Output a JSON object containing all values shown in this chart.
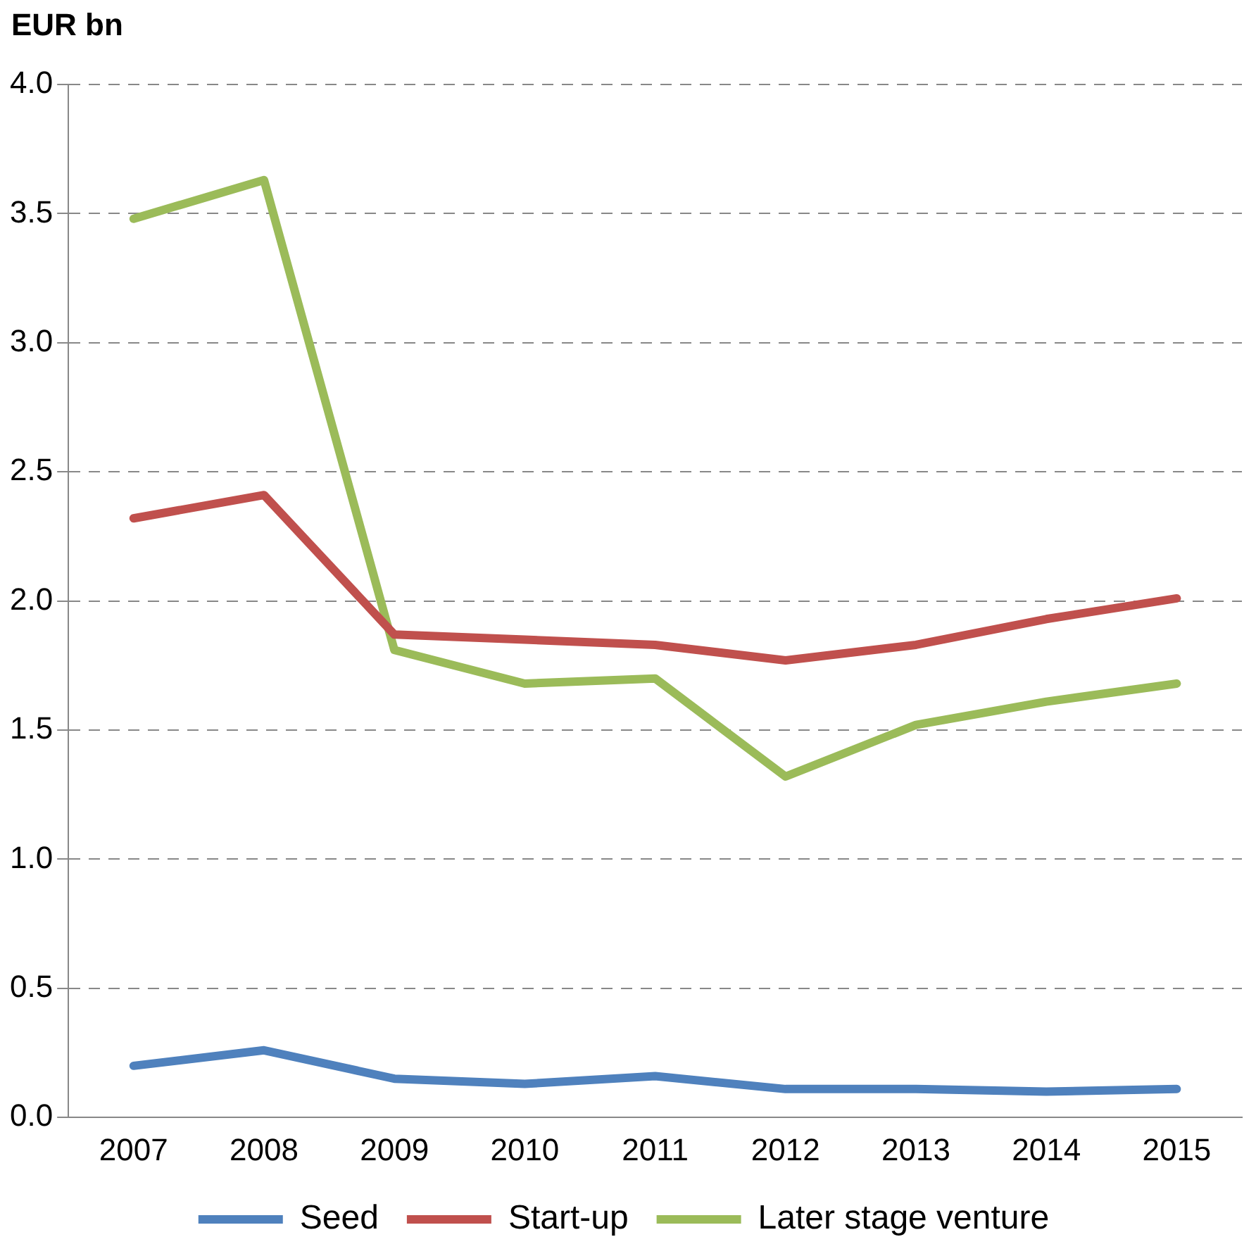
{
  "chart_data": {
    "type": "line",
    "ylabel": "EUR bn",
    "categories": [
      "2007",
      "2008",
      "2009",
      "2010",
      "2011",
      "2012",
      "2013",
      "2014",
      "2015"
    ],
    "series": [
      {
        "name": "Seed",
        "color": "#4f81bd",
        "values": [
          0.2,
          0.26,
          0.15,
          0.13,
          0.16,
          0.11,
          0.11,
          0.1,
          0.11
        ]
      },
      {
        "name": "Start-up",
        "color": "#c0504d",
        "values": [
          2.32,
          2.41,
          1.87,
          1.85,
          1.83,
          1.77,
          1.83,
          1.93,
          2.01
        ]
      },
      {
        "name": "Later stage venture",
        "color": "#9bbb59",
        "values": [
          3.48,
          3.63,
          1.81,
          1.68,
          1.7,
          1.32,
          1.52,
          1.61,
          1.68
        ]
      }
    ],
    "ylim": [
      0,
      4
    ],
    "yticks": [
      {
        "value": 0,
        "label": "0.0"
      },
      {
        "value": 0.5,
        "label": "0.5"
      },
      {
        "value": 1,
        "label": "1.0"
      },
      {
        "value": 1.5,
        "label": "1.5"
      },
      {
        "value": 2,
        "label": "2.0"
      },
      {
        "value": 2.5,
        "label": "2.5"
      },
      {
        "value": 3,
        "label": "3.0"
      },
      {
        "value": 3.5,
        "label": "3.5"
      },
      {
        "value": 4,
        "label": "4.0"
      }
    ],
    "grid": "y",
    "legend": "bottom",
    "marker": "none",
    "line_style": "solid"
  }
}
